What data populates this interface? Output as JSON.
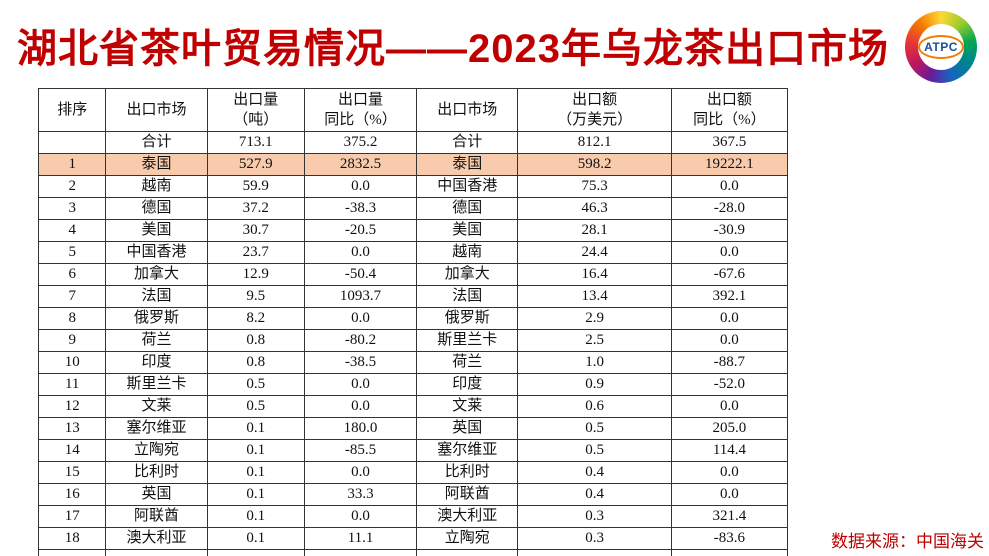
{
  "title": "湖北省茶叶贸易情况——2023年乌龙茶出口市场",
  "logo": {
    "text": "ATPC"
  },
  "source_note": "数据来源：中国海关",
  "colors": {
    "title_red": "#C00000",
    "highlight_peach": "#F8CBAD",
    "border": "#333333",
    "logo_text_blue": "#1a4f9c",
    "logo_oval_orange": "#f07d00"
  },
  "table": {
    "headers": [
      "排序",
      "出口市场",
      "出口量\n（吨）",
      "出口量\n同比（%）",
      "出口市场",
      "出口额\n（万美元）",
      "出口额\n同比（%）"
    ],
    "total_row": [
      "",
      "合计",
      "713.1",
      "375.2",
      "合计",
      "812.1",
      "367.5"
    ],
    "highlighted_rank": "1",
    "rows": [
      [
        "1",
        "泰国",
        "527.9",
        "2832.5",
        "泰国",
        "598.2",
        "19222.1"
      ],
      [
        "2",
        "越南",
        "59.9",
        "0.0",
        "中国香港",
        "75.3",
        "0.0"
      ],
      [
        "3",
        "德国",
        "37.2",
        "-38.3",
        "德国",
        "46.3",
        "-28.0"
      ],
      [
        "4",
        "美国",
        "30.7",
        "-20.5",
        "美国",
        "28.1",
        "-30.9"
      ],
      [
        "5",
        "中国香港",
        "23.7",
        "0.0",
        "越南",
        "24.4",
        "0.0"
      ],
      [
        "6",
        "加拿大",
        "12.9",
        "-50.4",
        "加拿大",
        "16.4",
        "-67.6"
      ],
      [
        "7",
        "法国",
        "9.5",
        "1093.7",
        "法国",
        "13.4",
        "392.1"
      ],
      [
        "8",
        "俄罗斯",
        "8.2",
        "0.0",
        "俄罗斯",
        "2.9",
        "0.0"
      ],
      [
        "9",
        "荷兰",
        "0.8",
        "-80.2",
        "斯里兰卡",
        "2.5",
        "0.0"
      ],
      [
        "10",
        "印度",
        "0.8",
        "-38.5",
        "荷兰",
        "1.0",
        "-88.7"
      ],
      [
        "11",
        "斯里兰卡",
        "0.5",
        "0.0",
        "印度",
        "0.9",
        "-52.0"
      ],
      [
        "12",
        "文莱",
        "0.5",
        "0.0",
        "文莱",
        "0.6",
        "0.0"
      ],
      [
        "13",
        "塞尔维亚",
        "0.1",
        "180.0",
        "英国",
        "0.5",
        "205.0"
      ],
      [
        "14",
        "立陶宛",
        "0.1",
        "-85.5",
        "塞尔维亚",
        "0.5",
        "114.4"
      ],
      [
        "15",
        "比利时",
        "0.1",
        "0.0",
        "比利时",
        "0.4",
        "0.0"
      ],
      [
        "16",
        "英国",
        "0.1",
        "33.3",
        "阿联酋",
        "0.4",
        "0.0"
      ],
      [
        "17",
        "阿联酋",
        "0.1",
        "0.0",
        "澳大利亚",
        "0.3",
        "321.4"
      ],
      [
        "18",
        "澳大利亚",
        "0.1",
        "11.1",
        "立陶宛",
        "0.3",
        "-83.6"
      ]
    ],
    "partial_row": [
      "",
      "",
      "",
      "",
      "",
      "",
      ""
    ]
  }
}
